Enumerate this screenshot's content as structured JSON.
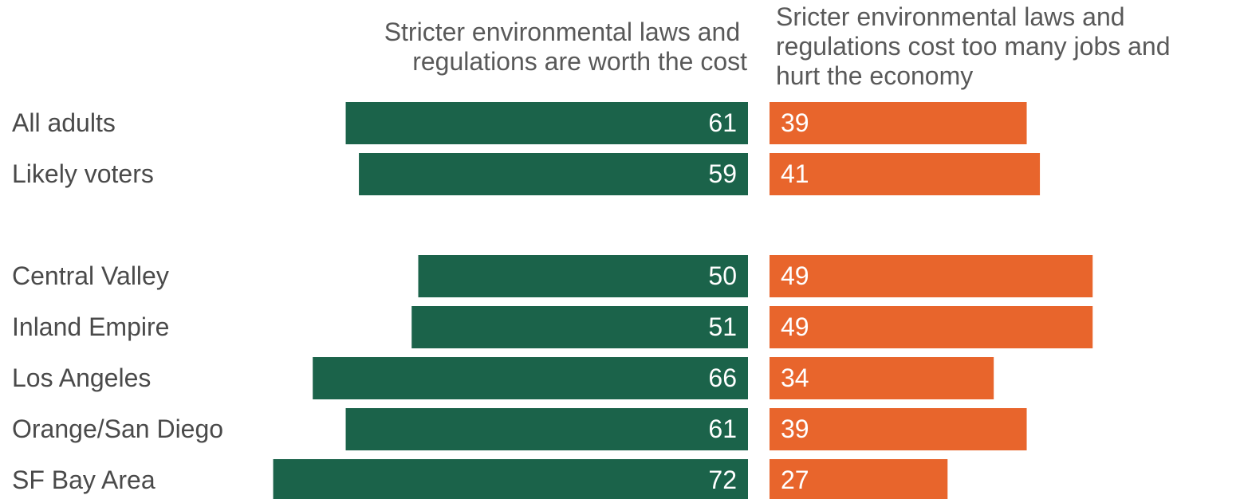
{
  "chart_data": {
    "type": "bar",
    "orientation": "horizontal-diverging",
    "title": "",
    "xlabel": "",
    "ylabel": "",
    "grid": false,
    "xlim": [
      0,
      100
    ],
    "legend": {
      "position": "top",
      "left_label": [
        "Stricter environmental laws and",
        "regulations are worth the cost"
      ],
      "right_label": [
        "Sricter environmental laws and",
        "regulations cost too many jobs and",
        "hurt the economy"
      ]
    },
    "categories": [
      "All adults",
      "Likely voters",
      "Central Valley",
      "Inland Empire",
      "Los Angeles",
      "Orange/San Diego",
      "SF Bay Area"
    ],
    "series": [
      {
        "values": [
          61,
          59,
          50,
          51,
          66,
          61,
          72
        ],
        "color": "#1b634a"
      },
      {
        "values": [
          39,
          41,
          49,
          49,
          34,
          39,
          27
        ],
        "color": "#e8652c"
      }
    ]
  }
}
